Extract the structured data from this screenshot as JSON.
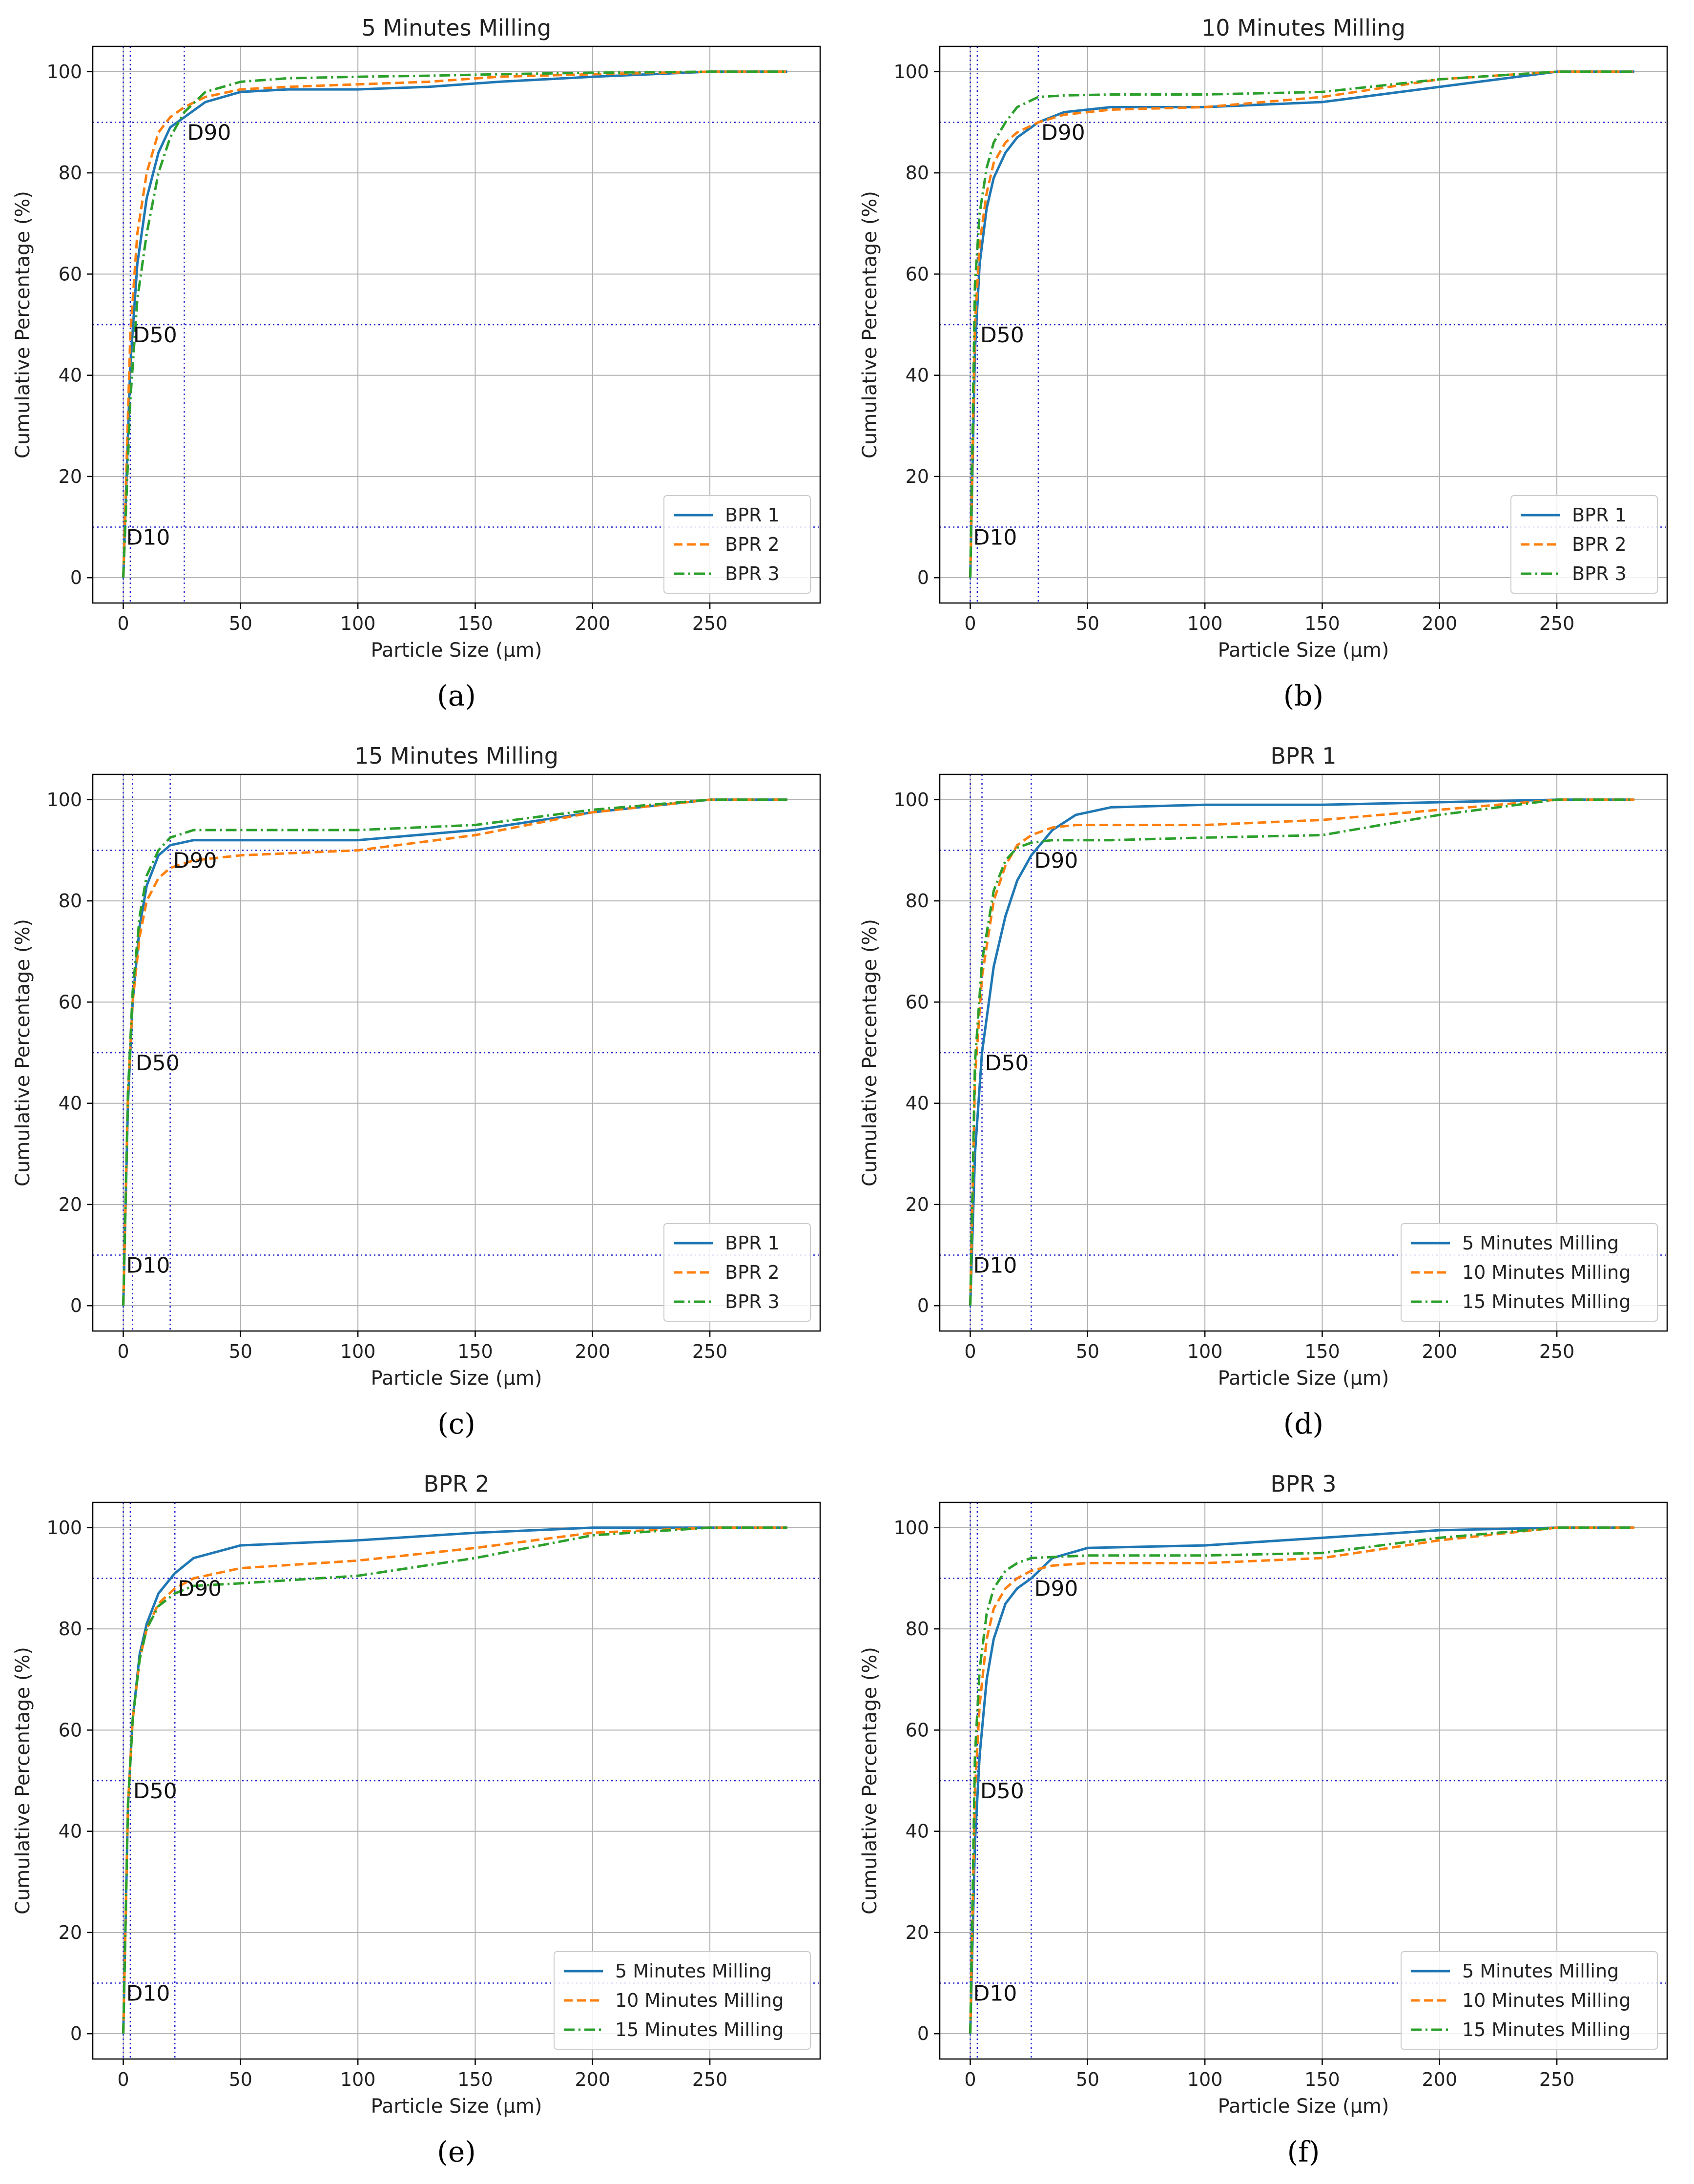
{
  "colors": {
    "blue": "#1f77b4",
    "orange": "#ff7f0e",
    "green": "#2ca02c",
    "ref": "#2222cc",
    "grid": "#b0b0b0"
  },
  "common": {
    "xlabel": "Particle Size (µm)",
    "ylabel": "Cumulative Percentage (%)",
    "xlim": [
      -13,
      297
    ],
    "ylim": [
      -5,
      105
    ],
    "xticks": [
      0,
      50,
      100,
      150,
      200,
      250
    ],
    "yticks": [
      0,
      20,
      40,
      60,
      80,
      100
    ],
    "ref_lines": {
      "y": [
        10,
        50,
        90
      ],
      "labels": [
        "D10",
        "D50",
        "D90"
      ]
    }
  },
  "chart_data": [
    {
      "id": "a",
      "caption": "(a)",
      "type": "line",
      "title": "5 Minutes Milling",
      "xlabel": "Particle Size (µm)",
      "ylabel": "Cumulative Percentage (%)",
      "d_markers_x": [
        0,
        3,
        26
      ],
      "legend": {
        "position": "lower-right",
        "entries": [
          "BPR 1",
          "BPR 2",
          "BPR 3"
        ]
      },
      "series": [
        {
          "name": "BPR 1",
          "style": "solid",
          "color": "#1f77b4",
          "x": [
            0,
            3,
            6,
            10,
            15,
            20,
            26,
            35,
            50,
            70,
            100,
            130,
            160,
            200,
            250,
            283
          ],
          "y": [
            0,
            42,
            62,
            75,
            84,
            89,
            91,
            94,
            96,
            96.5,
            96.5,
            97,
            98,
            99,
            100,
            100
          ]
        },
        {
          "name": "BPR 2",
          "style": "dashed",
          "color": "#ff7f0e",
          "x": [
            0,
            3,
            6,
            10,
            15,
            20,
            26,
            35,
            50,
            70,
            100,
            130,
            160,
            200,
            250,
            283
          ],
          "y": [
            0,
            48,
            68,
            80,
            88,
            91,
            93,
            95,
            96.5,
            97,
            97.5,
            98,
            99,
            99.5,
            100,
            100
          ]
        },
        {
          "name": "BPR 3",
          "style": "dashdot",
          "color": "#2ca02c",
          "x": [
            0,
            3,
            6,
            10,
            15,
            20,
            26,
            35,
            50,
            70,
            100,
            130,
            160,
            200,
            250,
            283
          ],
          "y": [
            0,
            35,
            55,
            68,
            80,
            87,
            92,
            96,
            98,
            98.7,
            99,
            99.2,
            99.5,
            99.8,
            100,
            100
          ]
        }
      ]
    },
    {
      "id": "b",
      "caption": "(b)",
      "type": "line",
      "title": "10 Minutes Milling",
      "xlabel": "Particle Size (µm)",
      "ylabel": "Cumulative Percentage (%)",
      "d_markers_x": [
        0,
        3,
        29
      ],
      "legend": {
        "position": "lower-right",
        "entries": [
          "BPR 1",
          "BPR 2",
          "BPR 3"
        ]
      },
      "series": [
        {
          "name": "BPR 1",
          "style": "solid",
          "color": "#1f77b4",
          "x": [
            0,
            2,
            4,
            7,
            10,
            15,
            20,
            29,
            40,
            60,
            100,
            150,
            200,
            250,
            283
          ],
          "y": [
            0,
            45,
            62,
            73,
            79,
            84,
            87,
            90,
            92,
            93,
            93,
            94,
            97,
            100,
            100
          ]
        },
        {
          "name": "BPR 2",
          "style": "dashed",
          "color": "#ff7f0e",
          "x": [
            0,
            2,
            4,
            7,
            10,
            15,
            20,
            29,
            40,
            60,
            100,
            150,
            200,
            250,
            283
          ],
          "y": [
            0,
            50,
            66,
            76,
            82,
            86,
            88,
            90,
            91.5,
            92.5,
            93,
            95,
            98.5,
            100,
            100
          ]
        },
        {
          "name": "BPR 3",
          "style": "dashdot",
          "color": "#2ca02c",
          "x": [
            0,
            2,
            4,
            7,
            10,
            15,
            20,
            29,
            40,
            60,
            100,
            150,
            200,
            250,
            283
          ],
          "y": [
            0,
            58,
            72,
            81,
            86,
            90,
            93,
            95,
            95.3,
            95.5,
            95.5,
            96,
            98.5,
            100,
            100
          ]
        }
      ]
    },
    {
      "id": "c",
      "caption": "(c)",
      "type": "line",
      "title": "15 Minutes Milling",
      "xlabel": "Particle Size (µm)",
      "ylabel": "Cumulative Percentage (%)",
      "d_markers_x": [
        0,
        4,
        20
      ],
      "legend": {
        "position": "lower-right",
        "entries": [
          "BPR 1",
          "BPR 2",
          "BPR 3"
        ]
      },
      "series": [
        {
          "name": "BPR 1",
          "style": "solid",
          "color": "#1f77b4",
          "x": [
            0,
            2,
            4,
            7,
            10,
            15,
            20,
            30,
            50,
            100,
            150,
            200,
            250,
            283
          ],
          "y": [
            0,
            40,
            60,
            75,
            83,
            89,
            91,
            92,
            92,
            92,
            94,
            97.5,
            100,
            100
          ]
        },
        {
          "name": "BPR 2",
          "style": "dashed",
          "color": "#ff7f0e",
          "x": [
            0,
            2,
            4,
            7,
            10,
            15,
            20,
            30,
            50,
            100,
            150,
            200,
            250,
            283
          ],
          "y": [
            0,
            42,
            60,
            73,
            80,
            84.5,
            86.5,
            88,
            89,
            90,
            93,
            97.5,
            100,
            100
          ]
        },
        {
          "name": "BPR 3",
          "style": "dashdot",
          "color": "#2ca02c",
          "x": [
            0,
            2,
            4,
            7,
            10,
            15,
            20,
            30,
            50,
            100,
            150,
            200,
            250,
            283
          ],
          "y": [
            0,
            42,
            62,
            77,
            85,
            90,
            92.5,
            94,
            94,
            94,
            95,
            98,
            100,
            100
          ]
        }
      ]
    },
    {
      "id": "d",
      "caption": "(d)",
      "type": "line",
      "title": "BPR 1",
      "xlabel": "Particle Size (µm)",
      "ylabel": "Cumulative Percentage (%)",
      "d_markers_x": [
        0,
        5,
        26
      ],
      "legend": {
        "position": "lower-right",
        "entries": [
          "5 Minutes Milling",
          "10 Minutes Milling",
          "15 Minutes Milling"
        ]
      },
      "series": [
        {
          "name": "5 Minutes Milling",
          "style": "solid",
          "color": "#1f77b4",
          "x": [
            0,
            2,
            5,
            10,
            15,
            20,
            26,
            35,
            45,
            60,
            100,
            150,
            200,
            250,
            283
          ],
          "y": [
            0,
            30,
            50,
            67,
            77,
            84,
            89,
            94,
            97,
            98.5,
            99,
            99,
            99.5,
            100,
            100
          ]
        },
        {
          "name": "10 Minutes Milling",
          "style": "dashed",
          "color": "#ff7f0e",
          "x": [
            0,
            2,
            5,
            10,
            15,
            20,
            26,
            35,
            45,
            60,
            100,
            150,
            200,
            250,
            283
          ],
          "y": [
            0,
            45,
            65,
            80,
            87,
            91,
            93,
            94.5,
            95,
            95,
            95,
            96,
            98,
            100,
            100
          ]
        },
        {
          "name": "15 Minutes Milling",
          "style": "dashdot",
          "color": "#2ca02c",
          "x": [
            0,
            2,
            5,
            10,
            15,
            20,
            26,
            35,
            45,
            60,
            100,
            150,
            200,
            250,
            283
          ],
          "y": [
            0,
            48,
            68,
            82,
            88,
            90.5,
            91.5,
            92,
            92,
            92,
            92.5,
            93,
            97,
            100,
            100
          ]
        }
      ]
    },
    {
      "id": "e",
      "caption": "(e)",
      "type": "line",
      "title": "BPR 2",
      "xlabel": "Particle Size (µm)",
      "ylabel": "Cumulative Percentage (%)",
      "d_markers_x": [
        0,
        3,
        22
      ],
      "legend": {
        "position": "lower-right",
        "entries": [
          "5 Minutes Milling",
          "10 Minutes Milling",
          "15 Minutes Milling"
        ]
      },
      "series": [
        {
          "name": "5 Minutes Milling",
          "style": "solid",
          "color": "#1f77b4",
          "x": [
            0,
            2,
            4,
            7,
            10,
            15,
            22,
            30,
            50,
            100,
            150,
            200,
            250,
            283
          ],
          "y": [
            0,
            45,
            62,
            75,
            81,
            87,
            91,
            94,
            96.5,
            97.5,
            99,
            100,
            100,
            100
          ]
        },
        {
          "name": "10 Minutes Milling",
          "style": "dashed",
          "color": "#ff7f0e",
          "x": [
            0,
            2,
            4,
            7,
            10,
            15,
            22,
            30,
            50,
            100,
            150,
            200,
            250,
            283
          ],
          "y": [
            0,
            45,
            62,
            74,
            80,
            85,
            88,
            90,
            92,
            93.5,
            96,
            99,
            100,
            100
          ]
        },
        {
          "name": "15 Minutes Milling",
          "style": "dashdot",
          "color": "#2ca02c",
          "x": [
            0,
            2,
            4,
            7,
            10,
            15,
            22,
            30,
            50,
            100,
            150,
            200,
            250,
            283
          ],
          "y": [
            0,
            45,
            62,
            74,
            80,
            84.5,
            87,
            88.5,
            89,
            90.5,
            94,
            98.5,
            100,
            100
          ]
        }
      ]
    },
    {
      "id": "f",
      "caption": "(f)",
      "type": "line",
      "title": "BPR 3",
      "xlabel": "Particle Size (µm)",
      "ylabel": "Cumulative Percentage (%)",
      "d_markers_x": [
        0,
        3,
        26
      ],
      "legend": {
        "position": "lower-right",
        "entries": [
          "5 Minutes Milling",
          "10 Minutes Milling",
          "15 Minutes Milling"
        ]
      },
      "series": [
        {
          "name": "5 Minutes Milling",
          "style": "solid",
          "color": "#1f77b4",
          "x": [
            0,
            2,
            4,
            7,
            10,
            15,
            20,
            26,
            35,
            50,
            100,
            150,
            200,
            250,
            283
          ],
          "y": [
            0,
            38,
            55,
            70,
            78,
            85,
            88,
            90,
            94,
            96,
            96.5,
            98,
            99.5,
            100,
            100
          ]
        },
        {
          "name": "10 Minutes Milling",
          "style": "dashed",
          "color": "#ff7f0e",
          "x": [
            0,
            2,
            4,
            7,
            10,
            15,
            20,
            26,
            35,
            50,
            100,
            150,
            200,
            250,
            283
          ],
          "y": [
            0,
            48,
            65,
            78,
            84,
            88,
            90,
            91.5,
            92.5,
            93,
            93,
            94,
            97.5,
            100,
            100
          ]
        },
        {
          "name": "15 Minutes Milling",
          "style": "dashdot",
          "color": "#2ca02c",
          "x": [
            0,
            2,
            4,
            7,
            10,
            15,
            20,
            26,
            35,
            50,
            100,
            150,
            200,
            250,
            283
          ],
          "y": [
            0,
            55,
            72,
            83,
            88,
            91.5,
            93,
            94,
            94.2,
            94.5,
            94.5,
            95,
            98,
            100,
            100
          ]
        }
      ]
    }
  ]
}
